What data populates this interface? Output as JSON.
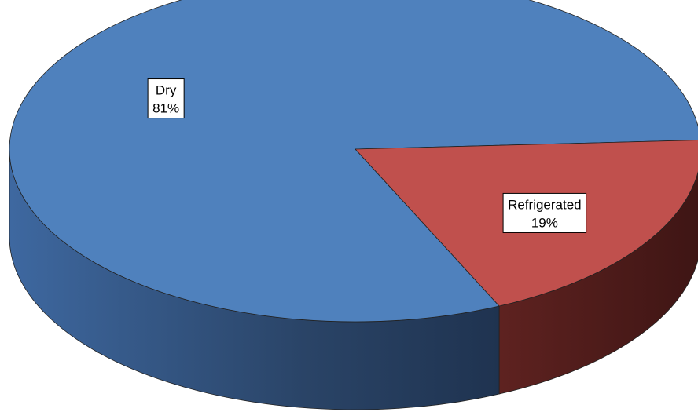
{
  "chart_data": {
    "type": "pie",
    "categories": [
      "Dry",
      "Refrigerated"
    ],
    "values": [
      81,
      19
    ],
    "value_labels": [
      "81%",
      "19%"
    ],
    "colors": [
      "#4f81bd",
      "#c0504d"
    ]
  }
}
